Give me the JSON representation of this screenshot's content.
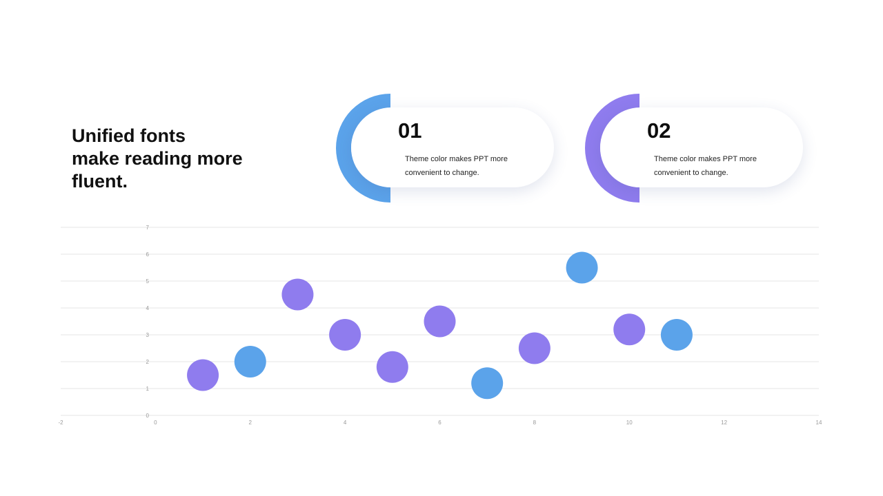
{
  "headline": {
    "line1": "Unified fonts",
    "line2": "make reading more",
    "line3": "fluent."
  },
  "cards": [
    {
      "number": "01",
      "text": "Theme  color makes PPT more\nconvenient to change.",
      "color": "#5ba3ea"
    },
    {
      "number": "02",
      "text": "Theme  color makes PPT more\nconvenient to change.",
      "color": "#8f7cee"
    }
  ],
  "chart_data": {
    "type": "scatter",
    "xlim": [
      -2,
      14
    ],
    "ylim": [
      0,
      7
    ],
    "x_ticks": [
      -2,
      0,
      2,
      4,
      6,
      8,
      10,
      12,
      14
    ],
    "y_ticks": [
      0,
      1,
      2,
      3,
      4,
      5,
      6,
      7
    ],
    "grid": "horizontal",
    "colors": {
      "purple": "#8f7cee",
      "blue": "#5ba3ea"
    },
    "points": [
      {
        "x": 1,
        "y": 1.5,
        "color": "purple"
      },
      {
        "x": 2,
        "y": 2,
        "color": "blue"
      },
      {
        "x": 3,
        "y": 4.5,
        "color": "purple"
      },
      {
        "x": 4,
        "y": 3,
        "color": "purple"
      },
      {
        "x": 5,
        "y": 1.8,
        "color": "purple"
      },
      {
        "x": 6,
        "y": 3.5,
        "color": "purple"
      },
      {
        "x": 7,
        "y": 1.2,
        "color": "blue"
      },
      {
        "x": 8,
        "y": 2.5,
        "color": "purple"
      },
      {
        "x": 9,
        "y": 5.5,
        "color": "blue"
      },
      {
        "x": 10,
        "y": 3.2,
        "color": "purple"
      },
      {
        "x": 11,
        "y": 3,
        "color": "blue"
      }
    ]
  }
}
